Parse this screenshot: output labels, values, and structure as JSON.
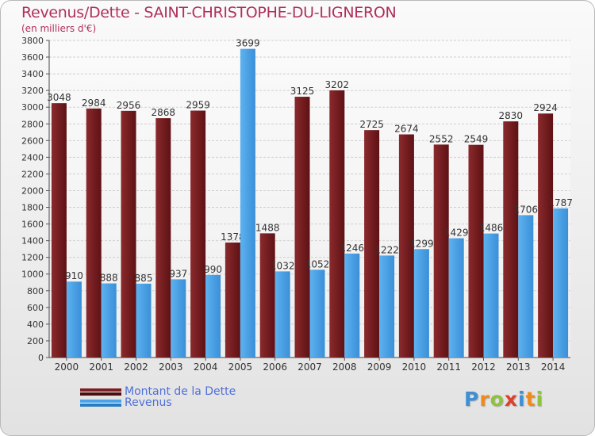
{
  "header": {
    "title": "Revenus/Dette - SAINT-CHRISTOPHE-DU-LIGNERON",
    "subtitle": "(en milliers d'€)"
  },
  "brand": {
    "letters": [
      "P",
      "r",
      "o",
      "x",
      "i",
      "t",
      "i"
    ],
    "colors": [
      "#3d8fd6",
      "#f08a1c",
      "#8cc43c",
      "#e0402a",
      "#3d8fd6",
      "#f08a1c",
      "#8cc43c"
    ]
  },
  "chart_data": {
    "type": "bar",
    "categories": [
      "2000",
      "2001",
      "2002",
      "2003",
      "2004",
      "2005",
      "2006",
      "2007",
      "2008",
      "2009",
      "2010",
      "2011",
      "2012",
      "2013",
      "2014"
    ],
    "series": [
      {
        "name": "Montant de la Dette",
        "values": [
          3048,
          2984,
          2956,
          2868,
          2959,
          1378,
          1488,
          3125,
          3202,
          2725,
          2674,
          2552,
          2549,
          2830,
          2924
        ],
        "color": "#7a1f22"
      },
      {
        "name": "Revenus",
        "values": [
          910,
          888,
          885,
          937,
          990,
          3699,
          1032,
          1052,
          1246,
          1222,
          1299,
          1429,
          1486,
          1706,
          1787
        ],
        "color": "#4aa3e8"
      }
    ],
    "value_labels": [
      [
        "3048",
        "2984",
        "2956",
        "2868",
        "2959",
        "1378",
        "1488",
        "3125",
        "3202",
        "2725",
        "2674",
        "2552",
        "2549",
        "2830",
        "2924"
      ],
      [
        "910",
        "888",
        "885",
        "937",
        "990",
        "3699",
        "1032",
        "1052",
        "1246",
        "1222",
        "1299",
        "1429",
        "1486",
        "1706",
        "1787"
      ]
    ],
    "ylim": [
      0,
      3800
    ],
    "yticks": [
      "0",
      "200",
      "400",
      "600",
      "800",
      "1000",
      "1200",
      "1400",
      "1600",
      "1800",
      "2000",
      "2200",
      "2400",
      "2600",
      "2800",
      "3000",
      "3200",
      "3400",
      "3600",
      "3800"
    ],
    "grid": true,
    "legend": "bottom-left"
  }
}
